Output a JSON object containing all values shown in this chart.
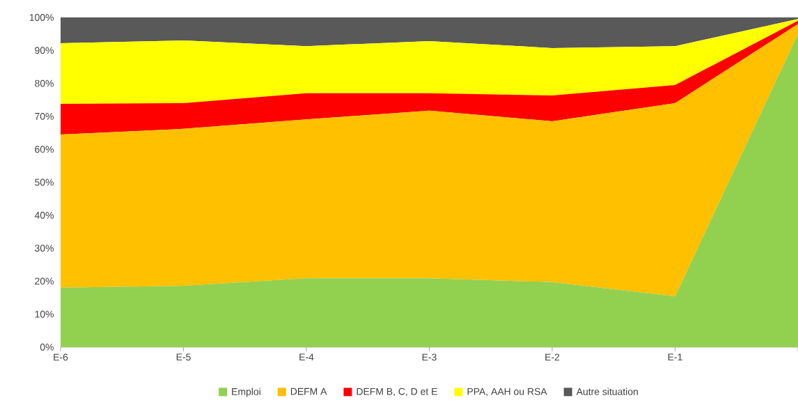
{
  "chart_data": {
    "type": "area",
    "stacked": true,
    "categories": [
      "E-6",
      "E-5",
      "E-4",
      "E-3",
      "E-2",
      "E-1",
      null
    ],
    "series": [
      {
        "name": "Emploi",
        "color": "#92d050",
        "values": [
          18.0,
          18.6,
          20.9,
          20.9,
          19.7,
          15.4,
          95.0
        ]
      },
      {
        "name": "DEFM A",
        "color": "#ffc000",
        "values": [
          46.5,
          47.6,
          48.2,
          50.8,
          48.8,
          58.6,
          3.0
        ]
      },
      {
        "name": "DEFM B, C, D et E",
        "color": "#ff0000",
        "values": [
          9.3,
          7.8,
          7.9,
          5.3,
          7.8,
          5.5,
          1.0
        ]
      },
      {
        "name": "PPA, AAH ou RSA",
        "color": "#ffff00",
        "values": [
          18.4,
          19.0,
          14.3,
          15.8,
          14.4,
          11.8,
          0.5
        ]
      },
      {
        "name": "Autre situation",
        "color": "#595959",
        "values": [
          7.8,
          7.0,
          8.7,
          7.2,
          9.3,
          8.7,
          0.5
        ]
      }
    ],
    "ylim": [
      0,
      100
    ],
    "yticks": [
      {
        "value": 0,
        "label": "0%"
      },
      {
        "value": 10,
        "label": "10%"
      },
      {
        "value": 20,
        "label": "20%"
      },
      {
        "value": 30,
        "label": "30%"
      },
      {
        "value": 40,
        "label": "40%"
      },
      {
        "value": 50,
        "label": "50%"
      },
      {
        "value": 60,
        "label": "60%"
      },
      {
        "value": 70,
        "label": "70%"
      },
      {
        "value": 80,
        "label": "80%"
      },
      {
        "value": 90,
        "label": "90%"
      },
      {
        "value": 100,
        "label": "100%"
      }
    ],
    "legend": "bottom"
  }
}
